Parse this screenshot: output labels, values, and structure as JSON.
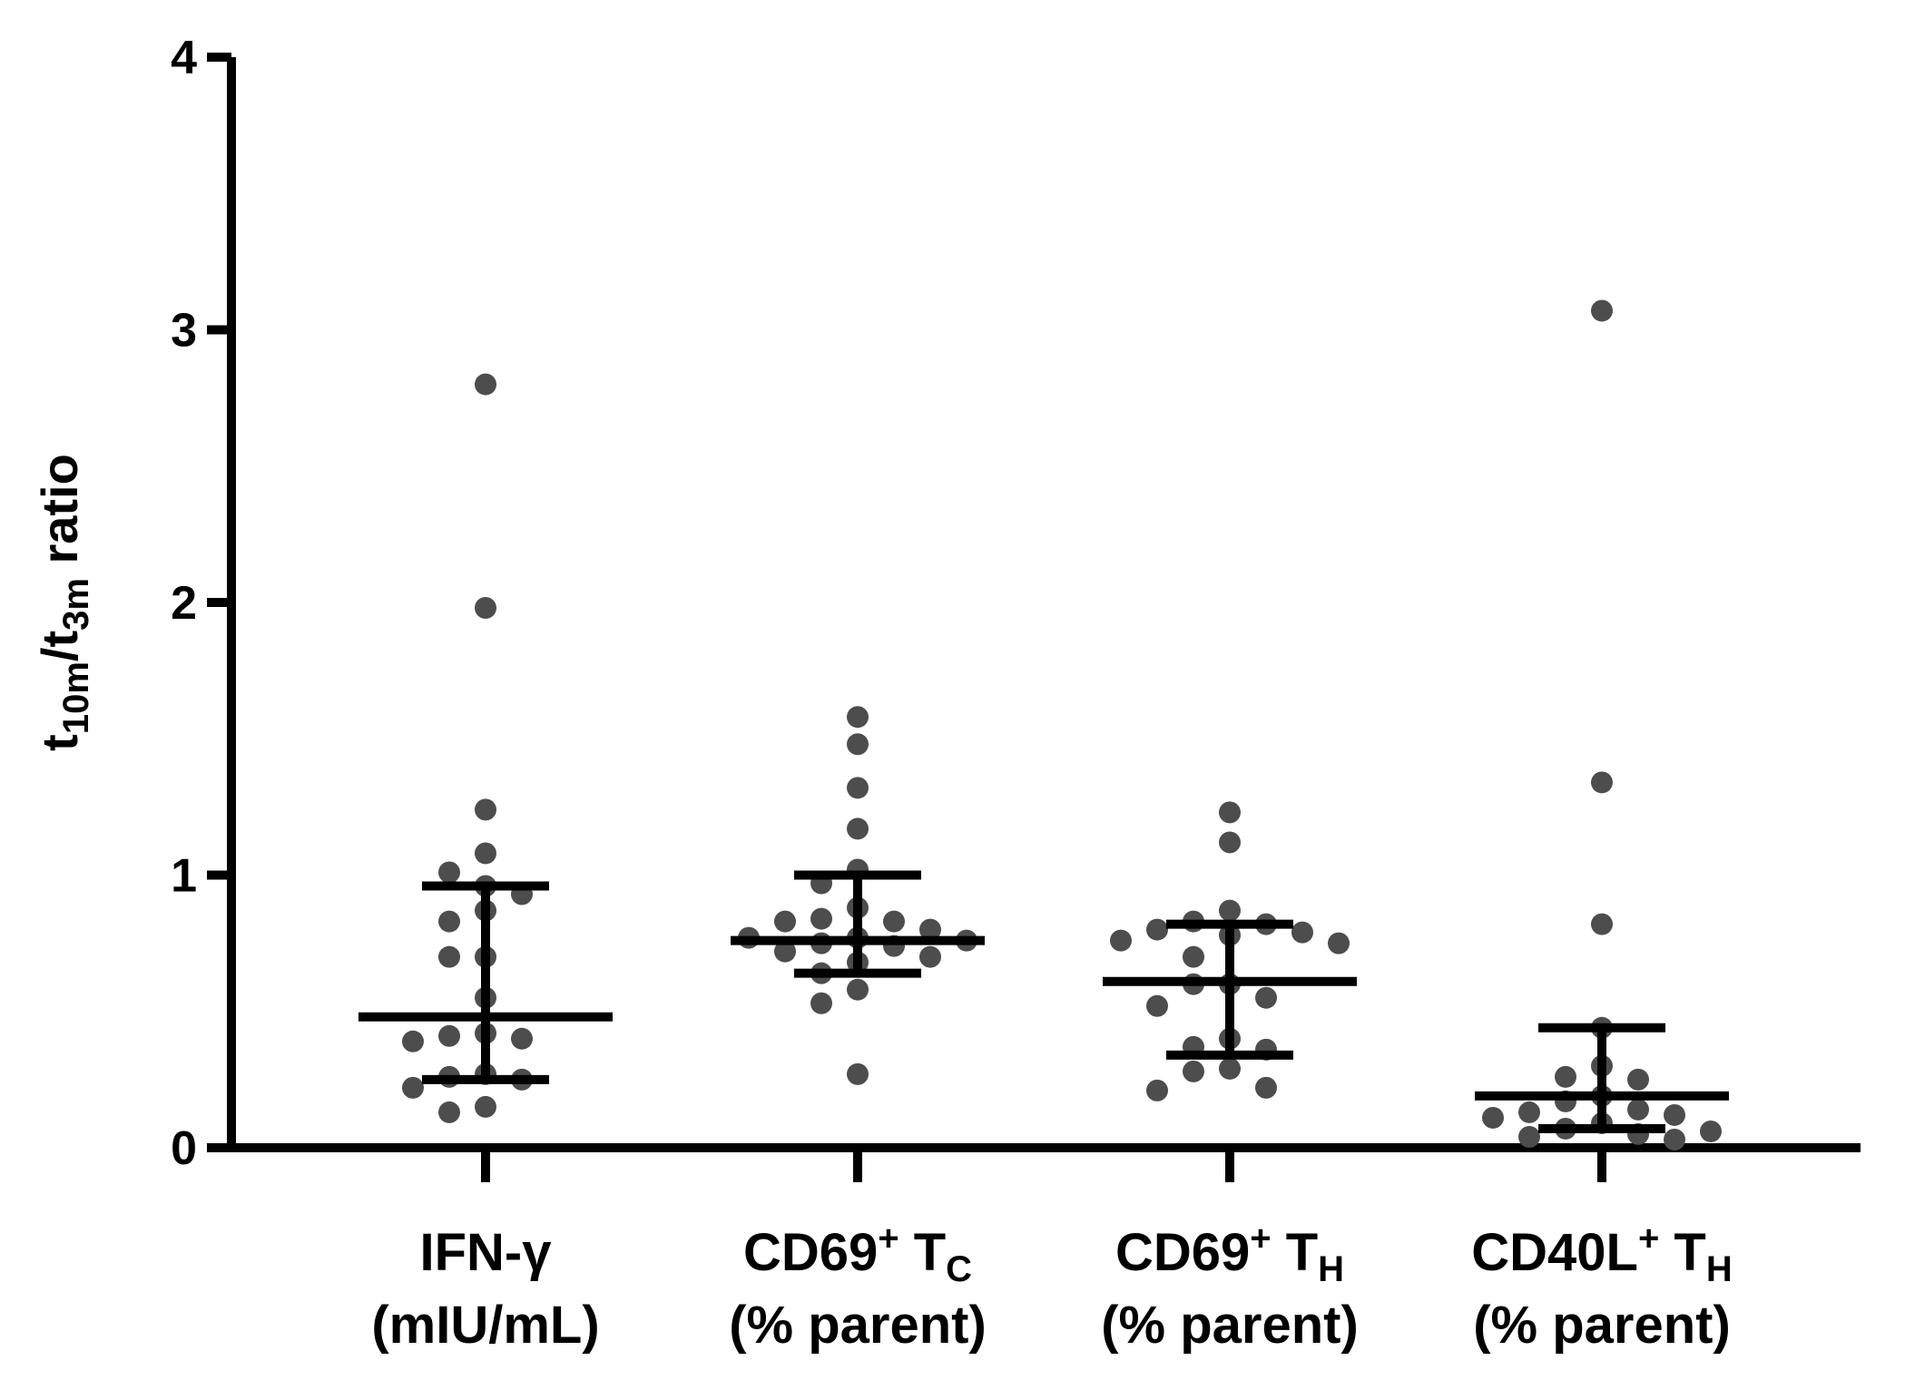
{
  "chart_data": {
    "type": "scatter",
    "title": "",
    "xlabel": "",
    "ylabel": {
      "parts": [
        {
          "text": "t",
          "sub": false
        },
        {
          "text": "10m",
          "sub": true
        },
        {
          "text": "/t",
          "sub": false
        },
        {
          "text": "3m",
          "sub": true
        },
        {
          "text": " ratio",
          "sub": false
        }
      ]
    },
    "ylim": [
      0,
      4
    ],
    "yticks": [
      "0",
      "1",
      "2",
      "3",
      "4"
    ],
    "colors": {
      "points": "#4d4d4d",
      "lines": "#000000"
    },
    "groups": [
      {
        "id": "ifn",
        "line1": [
          {
            "text": "IFN-γ",
            "style": "normal"
          }
        ],
        "line2": "(mIU/mL)",
        "median": 0.48,
        "q1": 0.25,
        "q3": 0.96,
        "values": [
          2.8,
          1.98,
          1.24,
          1.08,
          1.01,
          0.96,
          0.93,
          0.87,
          0.83,
          0.7,
          0.7,
          0.55,
          0.42,
          0.41,
          0.4,
          0.39,
          0.27,
          0.26,
          0.25,
          0.22,
          0.15,
          0.13
        ]
      },
      {
        "id": "cd69-tc",
        "line1": [
          {
            "text": "CD69",
            "style": "normal"
          },
          {
            "text": "+",
            "style": "sup"
          },
          {
            "text": " T",
            "style": "normal"
          },
          {
            "text": "C",
            "style": "sub"
          }
        ],
        "line2": "(% parent)",
        "median": 0.76,
        "q1": 0.64,
        "q3": 1.0,
        "values": [
          1.58,
          1.48,
          1.32,
          1.17,
          1.02,
          0.97,
          0.88,
          0.84,
          0.83,
          0.83,
          0.8,
          0.77,
          0.77,
          0.76,
          0.75,
          0.74,
          0.72,
          0.7,
          0.68,
          0.64,
          0.58,
          0.53,
          0.27
        ]
      },
      {
        "id": "cd69-th",
        "line1": [
          {
            "text": "CD69",
            "style": "normal"
          },
          {
            "text": "+",
            "style": "sup"
          },
          {
            "text": " T",
            "style": "normal"
          },
          {
            "text": "H",
            "style": "sub"
          }
        ],
        "line2": "(% parent)",
        "median": 0.61,
        "q1": 0.34,
        "q3": 0.82,
        "values": [
          1.23,
          1.12,
          0.87,
          0.83,
          0.82,
          0.8,
          0.79,
          0.78,
          0.76,
          0.75,
          0.7,
          0.6,
          0.6,
          0.55,
          0.52,
          0.4,
          0.37,
          0.36,
          0.29,
          0.28,
          0.22,
          0.21
        ]
      },
      {
        "id": "cd40l-th",
        "line1": [
          {
            "text": "CD40L",
            "style": "normal"
          },
          {
            "text": "+",
            "style": "sup"
          },
          {
            "text": " T",
            "style": "normal"
          },
          {
            "text": "H",
            "style": "sub"
          }
        ],
        "line2": "(% parent)",
        "median": 0.19,
        "q1": 0.07,
        "q3": 0.44,
        "values": [
          3.07,
          1.34,
          0.82,
          0.44,
          0.3,
          0.26,
          0.25,
          0.19,
          0.17,
          0.14,
          0.13,
          0.12,
          0.11,
          0.09,
          0.07,
          0.06,
          0.05,
          0.04,
          0.03
        ]
      }
    ]
  }
}
